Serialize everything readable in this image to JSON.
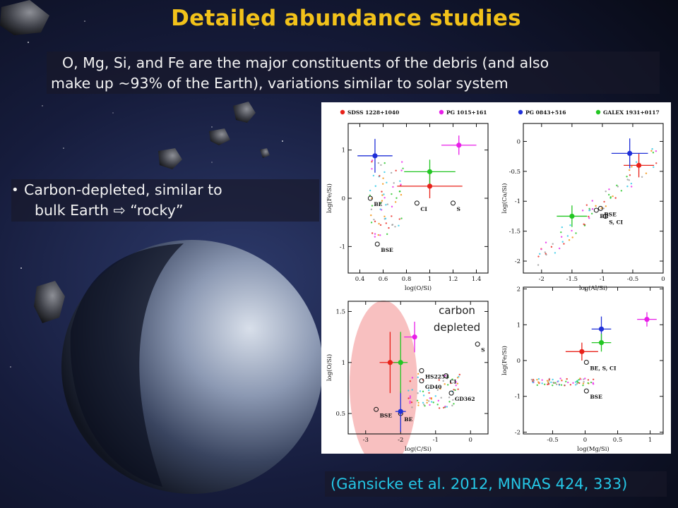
{
  "slide": {
    "title": "Detailed abundance studies",
    "banner_line1": "O, Mg, Si, and Fe are the major constituents of the debris (and also",
    "banner_line2": "make up ~93% of the Earth), variations similar to solar system",
    "bullet_line1": "Carbon-depleted, similar to",
    "bullet_line2": "bulk Earth ⇨ “rocky”",
    "citation": "(Gänsicke et al. 2012, MNRAS 424, 333)",
    "annotation_line1": "carbon",
    "annotation_line2": "depleted"
  },
  "colors": {
    "title": "#f2c21a",
    "citation": "#25c7e6",
    "SDSS 1228+1040": "#e8221a",
    "PG 1015+161": "#e81ee8",
    "PG 0843+516": "#1f2fd8",
    "GALEX 1931+0117": "#22c622",
    "highlight": "#f28c8c"
  },
  "legend": [
    "SDSS 1228+1040",
    "PG 1015+161",
    "PG 0843+516",
    "GALEX 1931+0117"
  ],
  "chart_data": [
    {
      "type": "scatter",
      "panel": "top-left",
      "xlabel": "log(O/Si)",
      "ylabel": "log(Fe/Si)",
      "xlim": [
        0.3,
        1.5
      ],
      "ylim": [
        -1.55,
        1.55
      ],
      "xticks": [
        "0.4",
        "0.6",
        "0.8",
        "1",
        "1.2",
        "1.4"
      ],
      "yticks": [
        "-1",
        "0",
        "1"
      ],
      "series": [
        {
          "name": "SDSS 1228+1040",
          "x": 1.0,
          "y": 0.25,
          "xerr": [
            0.28,
            0.28
          ],
          "yerr": [
            0.25,
            0.25
          ]
        },
        {
          "name": "PG 1015+161",
          "x": 1.25,
          "y": 1.1,
          "xerr": [
            0.15,
            0.15
          ],
          "yerr": [
            0.2,
            0.2
          ]
        },
        {
          "name": "PG 0843+516",
          "x": 0.53,
          "y": 0.88,
          "xerr": [
            0.15,
            0.15
          ],
          "yerr": [
            0.35,
            0.35
          ]
        },
        {
          "name": "GALEX 1931+0117",
          "x": 1.0,
          "y": 0.55,
          "xerr": [
            0.22,
            0.22
          ],
          "yerr": [
            0.25,
            0.25
          ]
        }
      ],
      "references": [
        {
          "label": "BE",
          "x": 0.49,
          "y": 0.0
        },
        {
          "label": "CI",
          "x": 0.89,
          "y": -0.1
        },
        {
          "label": "S",
          "x": 1.2,
          "y": -0.1
        },
        {
          "label": "BSE",
          "x": 0.55,
          "y": -0.95
        }
      ]
    },
    {
      "type": "scatter",
      "panel": "top-right",
      "xlabel": "log(Al/Si)",
      "ylabel": "log(Ca/Si)",
      "xlim": [
        -2.3,
        0.0
      ],
      "ylim": [
        -2.2,
        0.3
      ],
      "xticks": [
        "-2",
        "-1.5",
        "-1",
        "-0.5",
        "0"
      ],
      "yticks": [
        "-2",
        "-1.5",
        "-1",
        "-0.5",
        "0"
      ],
      "series": [
        {
          "name": "SDSS 1228+1040",
          "x": -0.4,
          "y": -0.4,
          "xerr": [
            0.25,
            0.25
          ],
          "yerr": [
            0.2,
            0.2
          ]
        },
        {
          "name": "PG 0843+516",
          "x": -0.55,
          "y": -0.2,
          "xerr": [
            0.3,
            0.3
          ],
          "yerr": [
            0.25,
            0.25
          ]
        },
        {
          "name": "GALEX 1931+0117",
          "x": -1.5,
          "y": -1.25,
          "xerr": [
            0.25,
            0.25
          ],
          "yerr": [
            0.18,
            0.18
          ]
        }
      ],
      "references": [
        {
          "label": "BSE",
          "x": -1.03,
          "y": -1.12
        },
        {
          "label": "BE",
          "x": -1.1,
          "y": -1.15
        },
        {
          "label": "S, CI",
          "x": -0.95,
          "y": -1.25
        }
      ]
    },
    {
      "type": "scatter",
      "panel": "bottom-left",
      "xlabel": "log(C/Si)",
      "ylabel": "log(O/Si)",
      "xlim": [
        -3.5,
        0.5
      ],
      "ylim": [
        0.3,
        1.6
      ],
      "xticks": [
        "-3",
        "-2",
        "-1",
        "0"
      ],
      "yticks": [
        "0.5",
        "1",
        "1.5"
      ],
      "series": [
        {
          "name": "SDSS 1228+1040",
          "x": -2.3,
          "y": 1.0,
          "xerr": [
            0.3,
            0.3
          ],
          "yerr": [
            0.3,
            0.3
          ]
        },
        {
          "name": "PG 1015+161",
          "x": -1.6,
          "y": 1.25,
          "xerr": [
            0.3,
            0.05
          ],
          "yerr": [
            0.15,
            0.15
          ]
        },
        {
          "name": "PG 0843+516",
          "x": -2.0,
          "y": 0.52,
          "xerr": [
            0.15,
            0.15
          ],
          "yerr": [
            0.2,
            0.2
          ]
        },
        {
          "name": "GALEX 1931+0117",
          "x": -2.0,
          "y": 1.0,
          "xerr": [
            0.2,
            0.2
          ],
          "yerr": [
            0.3,
            0.3
          ]
        }
      ],
      "references": [
        {
          "label": "S",
          "x": 0.2,
          "y": 1.18
        },
        {
          "label": "HS2253",
          "x": -1.4,
          "y": 0.92
        },
        {
          "label": "GD40",
          "x": -1.4,
          "y": 0.82
        },
        {
          "label": "CI",
          "x": -0.7,
          "y": 0.87
        },
        {
          "label": "GD362",
          "x": -0.55,
          "y": 0.7
        },
        {
          "label": "BSE",
          "x": -2.7,
          "y": 0.54
        },
        {
          "label": "BE",
          "x": -2.0,
          "y": 0.5
        }
      ]
    },
    {
      "type": "scatter",
      "panel": "bottom-right",
      "xlabel": "log(Mg/Si)",
      "ylabel": "log(Fe/Si)",
      "xlim": [
        -0.95,
        1.2
      ],
      "ylim": [
        -2.05,
        2.05
      ],
      "xticks": [
        "-0.5",
        "0",
        "0.5",
        "1"
      ],
      "yticks": [
        "-2",
        "-1",
        "0",
        "1",
        "2"
      ],
      "series": [
        {
          "name": "SDSS 1228+1040",
          "x": -0.05,
          "y": 0.25,
          "xerr": [
            0.25,
            0.25
          ],
          "yerr": [
            0.25,
            0.25
          ]
        },
        {
          "name": "PG 1015+161",
          "x": 0.95,
          "y": 1.15,
          "xerr": [
            0.15,
            0.15
          ],
          "yerr": [
            0.2,
            0.2
          ]
        },
        {
          "name": "PG 0843+516",
          "x": 0.25,
          "y": 0.88,
          "xerr": [
            0.15,
            0.15
          ],
          "yerr": [
            0.35,
            0.35
          ]
        },
        {
          "name": "GALEX 1931+0117",
          "x": 0.25,
          "y": 0.5,
          "xerr": [
            0.15,
            0.15
          ],
          "yerr": [
            0.25,
            0.25
          ]
        }
      ],
      "references": [
        {
          "label": "BE, S, CI",
          "x": 0.02,
          "y": -0.05
        },
        {
          "label": "BSE",
          "x": 0.02,
          "y": -0.85
        }
      ]
    }
  ]
}
